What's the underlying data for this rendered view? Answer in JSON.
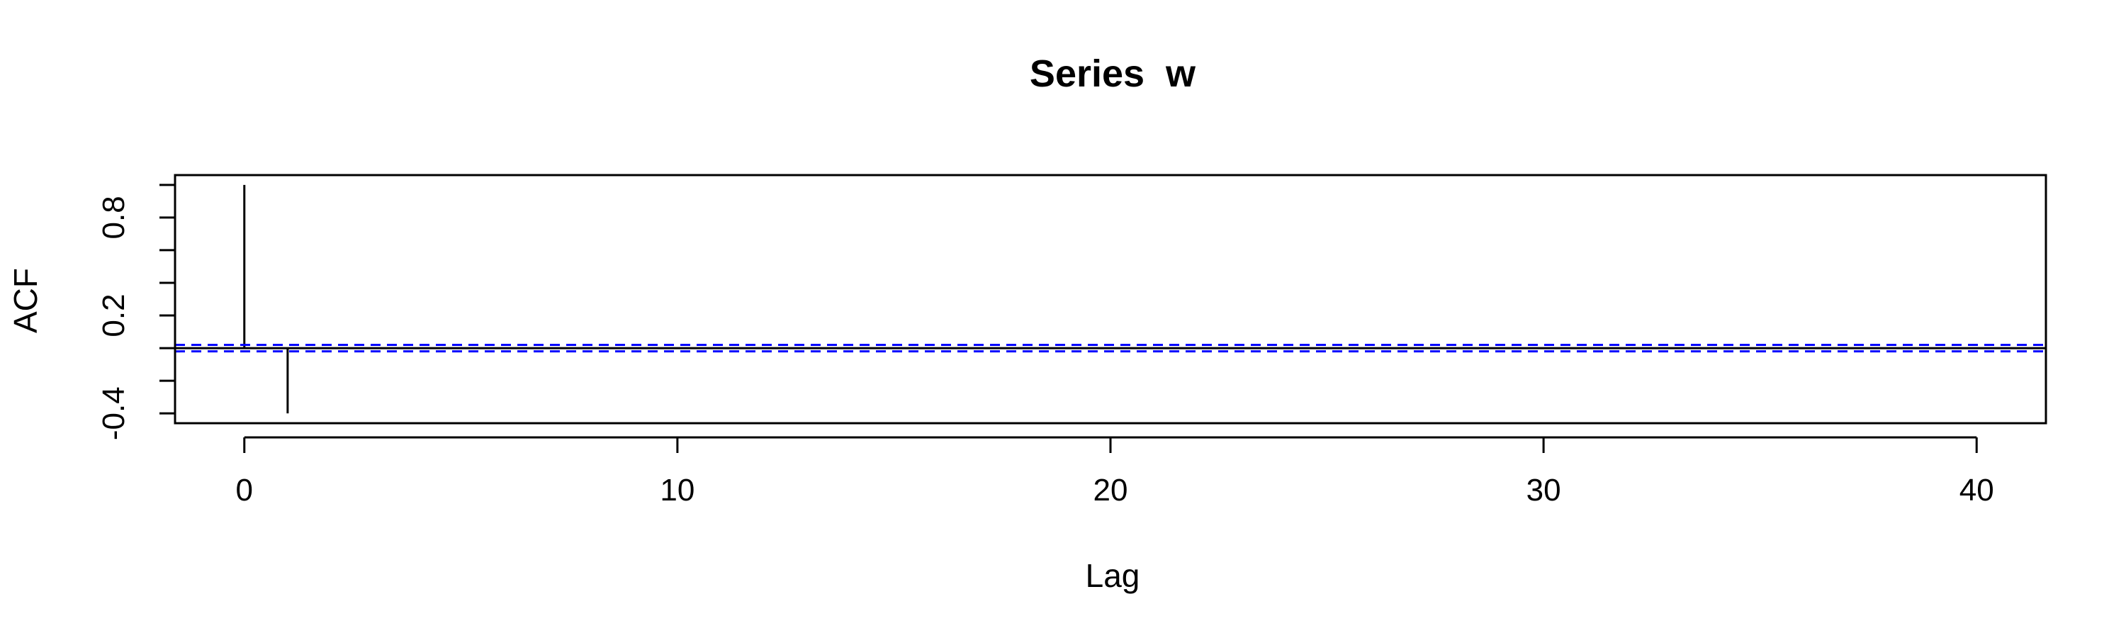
{
  "chart_data": {
    "type": "bar",
    "title": "Series  w",
    "xlabel": "Lag",
    "ylabel": "ACF",
    "xlim": [
      -1.6,
      41.6
    ],
    "ylim": [
      -0.46,
      1.06
    ],
    "x_ticks": [
      0,
      10,
      20,
      30,
      40
    ],
    "x_tick_labels": [
      "0",
      "10",
      "20",
      "30",
      "40"
    ],
    "y_ticks": [
      -0.4,
      -0.2,
      0.0,
      0.2,
      0.4,
      0.6,
      0.8,
      1.0
    ],
    "y_tick_labels": [
      "-0.4",
      "",
      "",
      "0.2",
      "",
      "",
      "0.8",
      ""
    ],
    "lags": [
      0,
      1,
      2,
      3,
      4,
      5,
      6,
      7,
      8,
      9,
      10,
      11,
      12,
      13,
      14,
      15,
      16,
      17,
      18,
      19,
      20,
      21,
      22,
      23,
      24,
      25,
      26,
      27,
      28,
      29,
      30,
      31,
      32,
      33,
      34,
      35,
      36,
      37,
      38,
      39,
      40
    ],
    "acf": [
      1.0,
      -0.4,
      0.003,
      -0.002,
      0.004,
      -0.003,
      0.002,
      -0.004,
      0.003,
      -0.002,
      0.004,
      -0.003,
      0.002,
      -0.004,
      0.003,
      -0.002,
      0.004,
      -0.003,
      0.002,
      -0.004,
      0.003,
      -0.002,
      0.004,
      -0.003,
      0.002,
      -0.004,
      0.003,
      -0.002,
      0.004,
      -0.003,
      0.002,
      -0.004,
      0.003,
      -0.002,
      0.004,
      -0.003,
      0.002,
      -0.004,
      0.003,
      -0.002,
      0.004
    ],
    "confidence_bounds": [
      0.02,
      -0.02
    ],
    "confidence_color": "#0000ff",
    "grid": false,
    "legend": "none"
  }
}
